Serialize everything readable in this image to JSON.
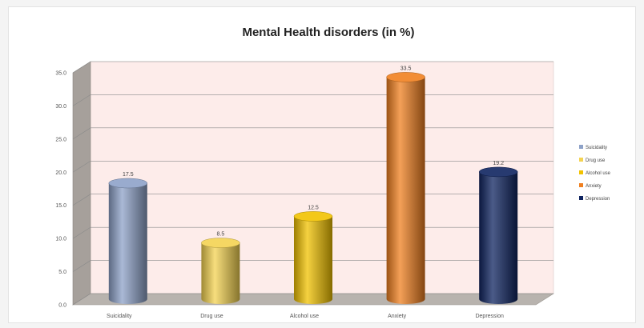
{
  "chart_data": {
    "type": "bar",
    "title": "Mental Health disorders  (in %)",
    "categories": [
      "Suicidality",
      "Drug use",
      "Alcohol use",
      "Anxiety",
      "Depression"
    ],
    "values": [
      17.5,
      8.5,
      12.5,
      33.5,
      19.2
    ],
    "data_labels": [
      "17.5",
      "8.5",
      "12.5",
      "33.5",
      "19.2"
    ],
    "yticks": [
      "0.0",
      "5.0",
      "10.0",
      "15.0",
      "20.0",
      "25.0",
      "30.0",
      "35.0"
    ],
    "ylim": [
      0,
      35
    ],
    "colors": [
      "#8ea2c8",
      "#f4d352",
      "#f2c200",
      "#f08020",
      "#0f2460"
    ],
    "grid": true,
    "legend": {
      "position": "right",
      "entries": [
        "Suicidality",
        "Drug use",
        "Alcohol use",
        "Anxiety",
        "Depression"
      ]
    }
  }
}
